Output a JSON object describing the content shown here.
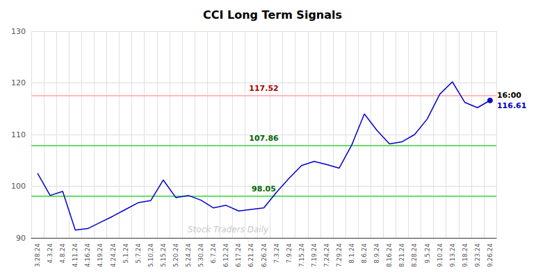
{
  "chart_data": {
    "type": "line",
    "title": "CCI Long Term Signals",
    "categories": [
      "3.28.24",
      "4.3.24",
      "4.8.24",
      "4.11.24",
      "4.16.24",
      "4.19.24",
      "4.24.24",
      "5.1.24",
      "5.7.24",
      "5.10.24",
      "5.15.24",
      "5.20.24",
      "5.24.24",
      "5.30.24",
      "6.7.24",
      "6.12.24",
      "6.17.24",
      "6.21.24",
      "6.26.24",
      "7.3.24",
      "7.9.24",
      "7.15.24",
      "7.19.24",
      "7.24.24",
      "7.29.24",
      "8.1.24",
      "8.6.24",
      "8.9.24",
      "8.16.24",
      "8.21.24",
      "8.28.24",
      "9.5.24",
      "9.10.24",
      "9.13.24",
      "9.18.24",
      "9.23.24",
      "9.26.24"
    ],
    "values": [
      102.5,
      98.2,
      99.0,
      91.5,
      91.8,
      93.0,
      94.2,
      95.5,
      96.8,
      97.2,
      101.2,
      97.8,
      98.2,
      97.3,
      95.8,
      96.3,
      95.2,
      95.5,
      95.8,
      98.8,
      101.5,
      104.0,
      104.8,
      104.2,
      103.5,
      108.0,
      114.0,
      110.8,
      108.2,
      108.6,
      110.0,
      113.0,
      117.8,
      120.2,
      116.2,
      115.2,
      116.61
    ],
    "color": "#0000cc",
    "ylim": [
      90,
      130
    ],
    "yticks": [
      90,
      100,
      110,
      120,
      130
    ],
    "grid": true,
    "reference_lines": [
      {
        "value": 117.52,
        "label": "117.52",
        "color": "#ffbbbb",
        "label_color": "#aa0000"
      },
      {
        "value": 107.86,
        "label": "107.86",
        "color": "#66dd66",
        "label_color": "#006600"
      },
      {
        "value": 98.05,
        "label": "98.05",
        "color": "#66dd66",
        "label_color": "#006600"
      }
    ],
    "end_label": {
      "text": "16:00",
      "value_label": "116.61"
    },
    "watermark": "Stock Traders Daily"
  }
}
